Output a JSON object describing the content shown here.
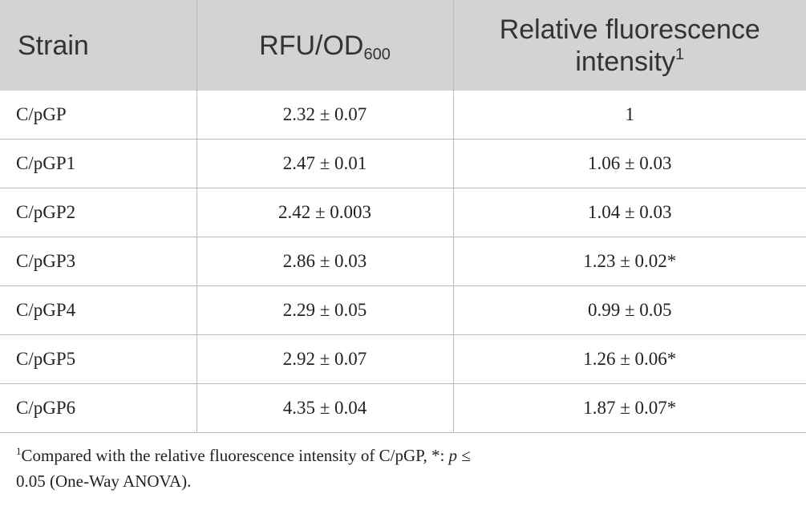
{
  "table": {
    "header": [
      {
        "text": "Strain"
      },
      {
        "text": "RFU/OD",
        "sub": "600"
      },
      {
        "text": "Relative fluorescence intensity",
        "sup": "1"
      }
    ],
    "rows": [
      [
        "C/pGP",
        "2.32 ± 0.07",
        "1"
      ],
      [
        "C/pGP1",
        "2.47 ± 0.01",
        "1.06 ± 0.03"
      ],
      [
        "C/pGP2",
        "2.42 ± 0.003",
        "1.04 ± 0.03"
      ],
      [
        "C/pGP3",
        "2.86 ± 0.03",
        "1.23 ± 0.02*"
      ],
      [
        "C/pGP4",
        "2.29 ± 0.05",
        "0.99 ± 0.05"
      ],
      [
        "C/pGP5",
        "2.92 ± 0.07",
        "1.26 ± 0.06*"
      ],
      [
        "C/pGP6",
        "4.35 ± 0.04",
        "1.87 ± 0.07*"
      ]
    ]
  },
  "footnote": {
    "marker": "1",
    "text_before": "Compared with the relative fluorescence intensity of C/pGP, *: ",
    "italic": "p",
    "text_after": " ≤ 0.05 (One-Way ANOVA)."
  }
}
